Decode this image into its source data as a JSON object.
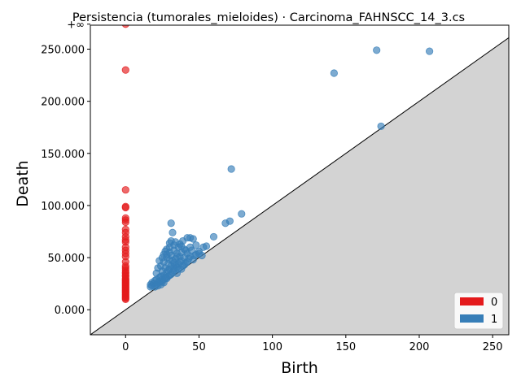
{
  "chart_data": {
    "type": "scatter",
    "title": "Persistencia (tumorales_mieloides) · Carcinoma_FAHNSCC_14_3.cs",
    "xlabel": "Birth",
    "ylabel": "Death",
    "xlim": [
      -24,
      261
    ],
    "ylim": [
      -24000,
      273000
    ],
    "x_ticks": [
      0,
      50,
      100,
      150,
      200,
      250
    ],
    "x_tick_labels": [
      "0",
      "50",
      "100",
      "150",
      "200",
      "250"
    ],
    "y_ticks": [
      0,
      50000,
      100000,
      150000,
      200000,
      250000
    ],
    "y_tick_labels": [
      "0.000",
      "50.000",
      "100.000",
      "150.000",
      "200.000",
      "250.000"
    ],
    "infinity_label": "+∞",
    "infinity_value": 274000,
    "diagonal_fill_color": "#d3d3d3",
    "legend": {
      "placement": "bottom-right",
      "entries": [
        {
          "label": "0",
          "color": "#e41a1c"
        },
        {
          "label": "1",
          "color": "#377eb8"
        }
      ]
    },
    "series": [
      {
        "name": "0",
        "color": "#e41a1c",
        "points": [
          [
            0,
            274000
          ],
          [
            0,
            230000
          ],
          [
            0,
            115000
          ],
          [
            0,
            99000
          ],
          [
            0,
            98000
          ],
          [
            0,
            88000
          ],
          [
            0,
            86000
          ],
          [
            0,
            84000
          ],
          [
            0,
            77000
          ],
          [
            0,
            74000
          ],
          [
            0,
            70000
          ],
          [
            0,
            67000
          ],
          [
            0,
            65000
          ],
          [
            0,
            60000
          ],
          [
            0,
            57000
          ],
          [
            0,
            54000
          ],
          [
            0,
            51000
          ],
          [
            0,
            46000
          ],
          [
            0,
            42000
          ],
          [
            0,
            40000
          ],
          [
            0,
            38000
          ],
          [
            0,
            36000
          ],
          [
            0,
            35000
          ],
          [
            0,
            33000
          ],
          [
            0,
            32000
          ],
          [
            0,
            30000
          ],
          [
            0,
            29000
          ],
          [
            0,
            28000
          ],
          [
            0,
            27000
          ],
          [
            0,
            26000
          ],
          [
            0,
            25000
          ],
          [
            0,
            24000
          ],
          [
            0,
            23000
          ],
          [
            0,
            22000
          ],
          [
            0,
            21000
          ],
          [
            0,
            20000
          ],
          [
            0,
            19000
          ],
          [
            0,
            18000
          ],
          [
            0,
            17000
          ],
          [
            0,
            16000
          ],
          [
            0,
            15000
          ],
          [
            0,
            14000
          ],
          [
            0,
            13000
          ],
          [
            0,
            12000
          ],
          [
            0,
            11000
          ],
          [
            0,
            10000
          ]
        ]
      },
      {
        "name": "1",
        "color": "#377eb8",
        "points": [
          [
            171,
            249000
          ],
          [
            207,
            248000
          ],
          [
            142,
            227000
          ],
          [
            174,
            176000
          ],
          [
            72,
            135000
          ],
          [
            79,
            92000
          ],
          [
            71,
            85000
          ],
          [
            68,
            83000
          ],
          [
            31,
            83000
          ],
          [
            32,
            74000
          ],
          [
            60,
            70000
          ],
          [
            44,
            69000
          ],
          [
            42,
            69000
          ],
          [
            46,
            68000
          ],
          [
            31,
            66000
          ],
          [
            34,
            65000
          ],
          [
            30,
            64000
          ],
          [
            37,
            63000
          ],
          [
            48,
            62000
          ],
          [
            55,
            61000
          ],
          [
            53,
            60000
          ],
          [
            36,
            60000
          ],
          [
            40,
            58000
          ],
          [
            28,
            58000
          ],
          [
            45,
            57000
          ],
          [
            33,
            57000
          ],
          [
            50,
            56000
          ],
          [
            38,
            55000
          ],
          [
            30,
            55000
          ],
          [
            42,
            54000
          ],
          [
            35,
            54000
          ],
          [
            26,
            53000
          ],
          [
            48,
            53000
          ],
          [
            52,
            52000
          ],
          [
            31,
            52000
          ],
          [
            37,
            51000
          ],
          [
            44,
            51000
          ],
          [
            28,
            50000
          ],
          [
            40,
            50000
          ],
          [
            34,
            49000
          ],
          [
            46,
            48000
          ],
          [
            30,
            48000
          ],
          [
            38,
            47000
          ],
          [
            26,
            46000
          ],
          [
            42,
            46000
          ],
          [
            33,
            45000
          ],
          [
            36,
            44000
          ],
          [
            29,
            44000
          ],
          [
            40,
            43000
          ],
          [
            24,
            42000
          ],
          [
            31,
            42000
          ],
          [
            35,
            41000
          ],
          [
            27,
            40000
          ],
          [
            22,
            40000
          ],
          [
            38,
            39000
          ],
          [
            30,
            39000
          ],
          [
            33,
            38000
          ],
          [
            25,
            37000
          ],
          [
            28,
            36000
          ],
          [
            21,
            35000
          ],
          [
            35,
            35000
          ],
          [
            31,
            34000
          ],
          [
            26,
            33000
          ],
          [
            24,
            32000
          ],
          [
            29,
            32000
          ],
          [
            23,
            31000
          ],
          [
            27,
            30000
          ],
          [
            21,
            29000
          ],
          [
            25,
            29000
          ],
          [
            20,
            28000
          ],
          [
            23,
            27000
          ],
          [
            18,
            26000
          ],
          [
            22,
            26000
          ],
          [
            26,
            26000
          ],
          [
            19,
            25000
          ],
          [
            21,
            24000
          ],
          [
            17,
            24000
          ],
          [
            24,
            24000
          ],
          [
            18,
            23000
          ],
          [
            20,
            22000
          ],
          [
            17,
            22000
          ],
          [
            22,
            23000
          ],
          [
            28,
            30000
          ],
          [
            32,
            36000
          ],
          [
            36,
            39000
          ],
          [
            41,
            45000
          ],
          [
            43,
            49000
          ],
          [
            47,
            52000
          ],
          [
            50,
            54000
          ],
          [
            39,
            42000
          ],
          [
            33,
            40000
          ],
          [
            30,
            33000
          ],
          [
            27,
            31000
          ],
          [
            25,
            27000
          ],
          [
            34,
            43000
          ],
          [
            37,
            46000
          ],
          [
            29,
            38000
          ],
          [
            32,
            47000
          ],
          [
            35,
            51000
          ],
          [
            41,
            57000
          ],
          [
            44,
            60000
          ],
          [
            38,
            61000
          ],
          [
            33,
            62000
          ],
          [
            30,
            60000
          ],
          [
            27,
            56000
          ],
          [
            25,
            50000
          ],
          [
            23,
            47000
          ],
          [
            28,
            53000
          ],
          [
            39,
            66000
          ]
        ]
      }
    ]
  }
}
